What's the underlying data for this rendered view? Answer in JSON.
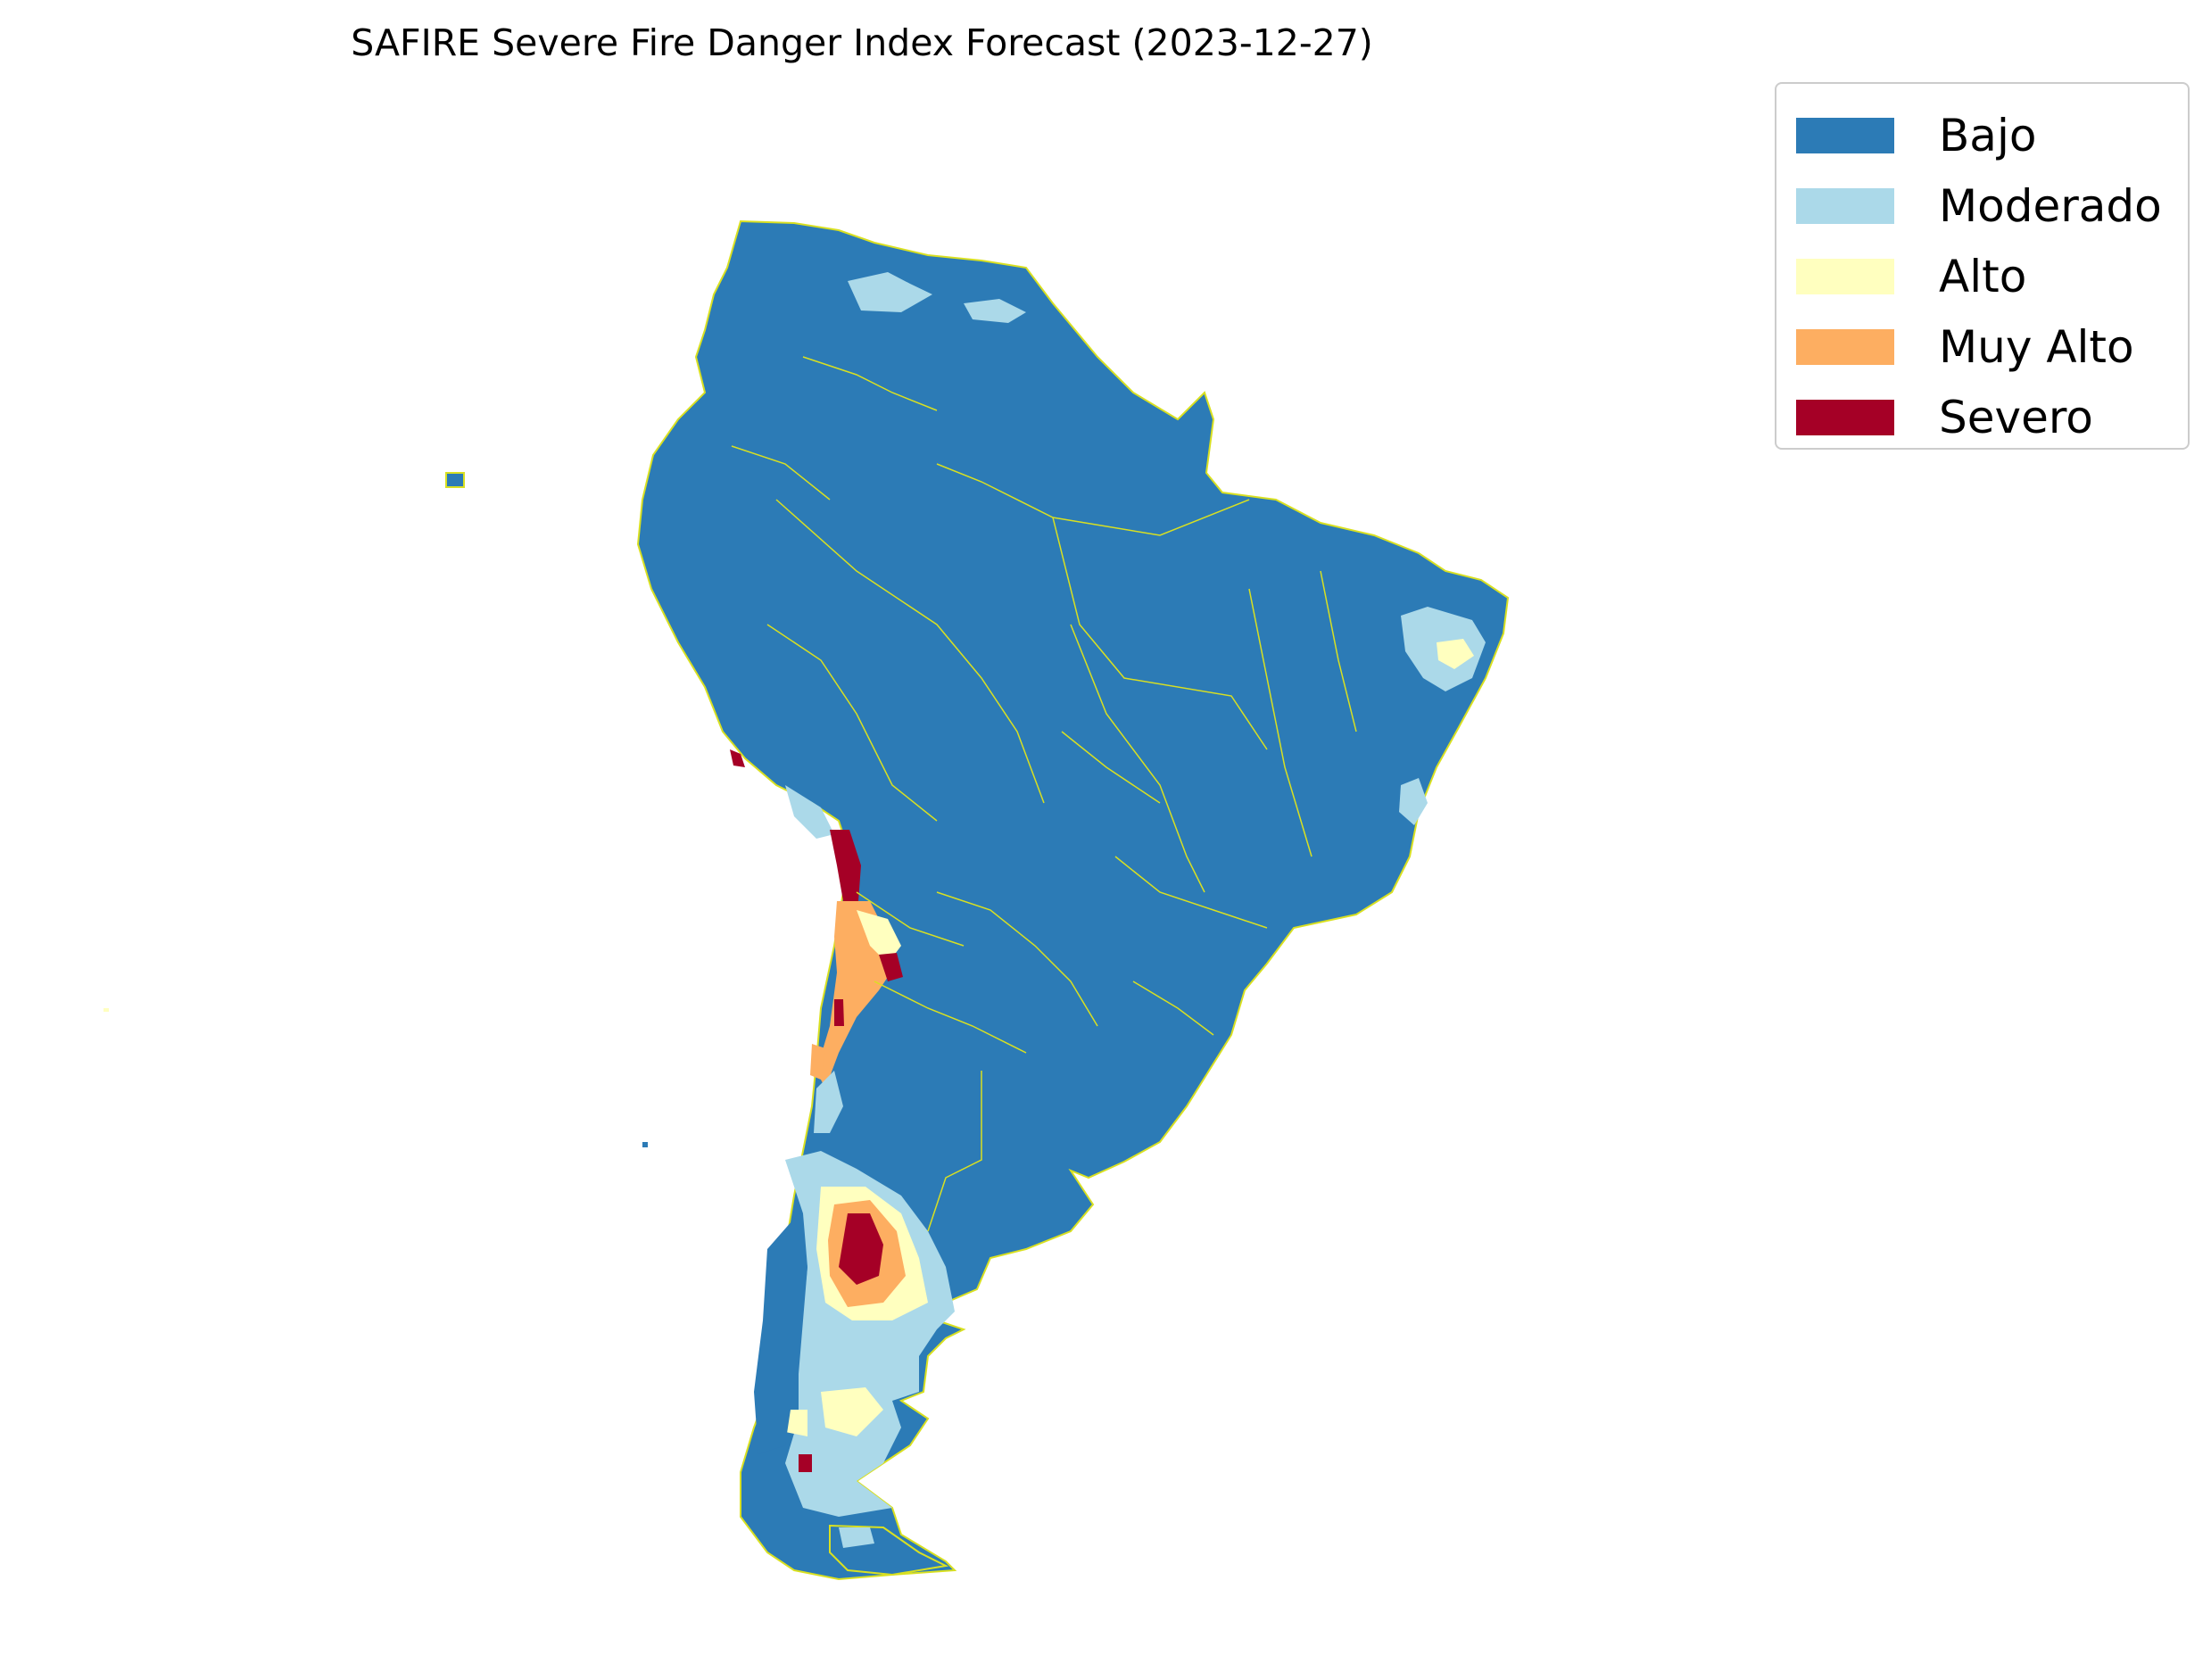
{
  "title": "SAFIRE Severe Fire Danger Index Forecast (2023-12-27)",
  "border_color": "#d9e021",
  "legend": {
    "items": [
      {
        "label": "Bajo",
        "color": "#2c7bb6"
      },
      {
        "label": "Moderado",
        "color": "#abd9e9"
      },
      {
        "label": "Alto",
        "color": "#ffffbf"
      },
      {
        "label": "Muy Alto",
        "color": "#fdae61"
      },
      {
        "label": "Severo",
        "color": "#a50026"
      }
    ]
  }
}
